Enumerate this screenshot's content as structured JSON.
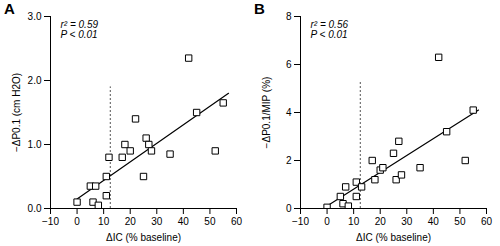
{
  "chart_data": [
    {
      "type": "scatter",
      "title": "A",
      "x_label": "ΔIC (% baseline)",
      "y_label": "−ΔP0.1 (cm H2O)",
      "annotations": [
        "r² = 0.59",
        "P < 0.01"
      ],
      "x": [
        0,
        5,
        6,
        7,
        8,
        11,
        11,
        12,
        17,
        18,
        20,
        22,
        25,
        26,
        27,
        28,
        35,
        42,
        45,
        52,
        55
      ],
      "values": [
        0.1,
        0.35,
        0.1,
        0.35,
        0.05,
        0.5,
        0.2,
        0.8,
        0.8,
        1.0,
        0.9,
        1.4,
        0.5,
        1.1,
        1.0,
        0.9,
        0.85,
        2.35,
        1.5,
        0.9,
        1.65
      ],
      "fit": {
        "x": [
          0,
          57
        ],
        "y": [
          0.15,
          1.8
        ]
      },
      "ref_line": {
        "x": 12.5,
        "y": [
          0,
          1.9
        ]
      },
      "color": "#000000",
      "marker": "square",
      "xlim": [
        -10,
        60
      ],
      "xticks": [
        -10,
        0,
        10,
        20,
        30,
        40,
        50,
        60
      ],
      "ylim": [
        0,
        3
      ],
      "yticks": [
        0,
        1,
        2,
        3
      ],
      "grid": false
    },
    {
      "type": "scatter",
      "title": "B",
      "x_label": "ΔIC (% baseline)",
      "y_label": "−ΔP0.1/MIP (%)",
      "annotations": [
        "r² = 0.56",
        "P < 0.01"
      ],
      "x": [
        0,
        5,
        6,
        7,
        8,
        11,
        11,
        13,
        17,
        18,
        20,
        21,
        25,
        26,
        27,
        28,
        35,
        42,
        45,
        52,
        55
      ],
      "values": [
        0.05,
        0.5,
        0.2,
        0.9,
        0.1,
        1.1,
        0.5,
        0.9,
        2.0,
        1.2,
        1.6,
        1.7,
        2.3,
        1.2,
        2.8,
        1.4,
        1.7,
        6.3,
        3.2,
        2.0,
        4.1
      ],
      "fit": {
        "x": [
          0,
          57
        ],
        "y": [
          0.1,
          4.1
        ]
      },
      "ref_line": {
        "x": 12.5,
        "y": [
          0,
          5.3
        ]
      },
      "color": "#000000",
      "marker": "square",
      "xlim": [
        -10,
        60
      ],
      "xticks": [
        -10,
        0,
        10,
        20,
        30,
        40,
        50,
        60
      ],
      "ylim": [
        0,
        8
      ],
      "yticks": [
        0,
        2,
        4,
        6,
        8
      ],
      "grid": false
    }
  ]
}
